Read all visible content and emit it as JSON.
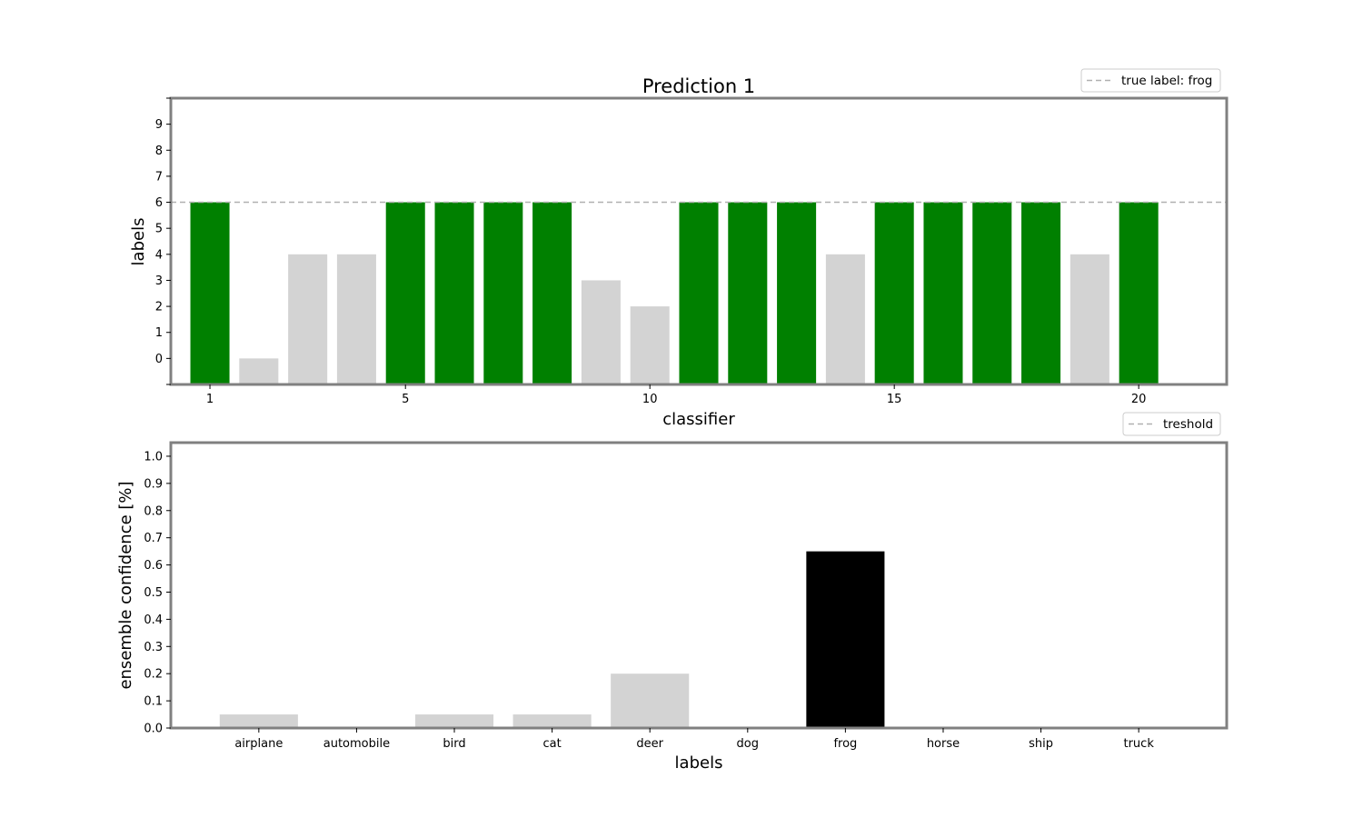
{
  "colors": {
    "match": "#008000",
    "mismatch": "#d3d3d3",
    "top_prediction": "#000000",
    "other": "#d3d3d3",
    "reference_line": "#b0b0b0",
    "frame": "#808080"
  },
  "chart_data": [
    {
      "type": "bar",
      "title": "Prediction 1",
      "xlabel": "classifier",
      "ylabel": "labels",
      "x": [
        1,
        2,
        3,
        4,
        5,
        6,
        7,
        8,
        9,
        10,
        11,
        12,
        13,
        14,
        15,
        16,
        17,
        18,
        19,
        20
      ],
      "values": [
        6,
        0,
        4,
        4,
        6,
        6,
        6,
        6,
        3,
        2,
        6,
        6,
        6,
        4,
        6,
        6,
        6,
        6,
        4,
        6
      ],
      "xticks": [
        1,
        5,
        10,
        15,
        20
      ],
      "yticks": [
        0,
        1,
        2,
        3,
        4,
        5,
        6,
        7,
        8,
        9
      ],
      "xlim": [
        0.2,
        21.8
      ],
      "ylim": [
        -1,
        10
      ],
      "bar_bottom": -1,
      "reference_line": {
        "value": 6,
        "label": "true label: frog"
      },
      "legend": {
        "entries": [
          "true label: frog"
        ],
        "placement": "top-right, above axes"
      },
      "grid": false
    },
    {
      "type": "bar",
      "title": "",
      "xlabel": "labels",
      "ylabel": "ensemble confidence [%]",
      "categories": [
        "airplane",
        "automobile",
        "bird",
        "cat",
        "deer",
        "dog",
        "frog",
        "horse",
        "ship",
        "truck"
      ],
      "values": [
        0.05,
        0.0,
        0.05,
        0.05,
        0.2,
        0.0,
        0.65,
        0.0,
        0.0,
        0.0
      ],
      "yticks": [
        "0.0",
        "0.1",
        "0.2",
        "0.3",
        "0.4",
        "0.5",
        "0.6",
        "0.7",
        "0.8",
        "0.9",
        "1.0"
      ],
      "ylim": [
        0,
        1.05
      ],
      "highlighted_category": "frog",
      "reference_line": {
        "label": "treshold"
      },
      "legend": {
        "entries": [
          "treshold"
        ],
        "placement": "top-right, above axes"
      },
      "grid": false
    }
  ]
}
